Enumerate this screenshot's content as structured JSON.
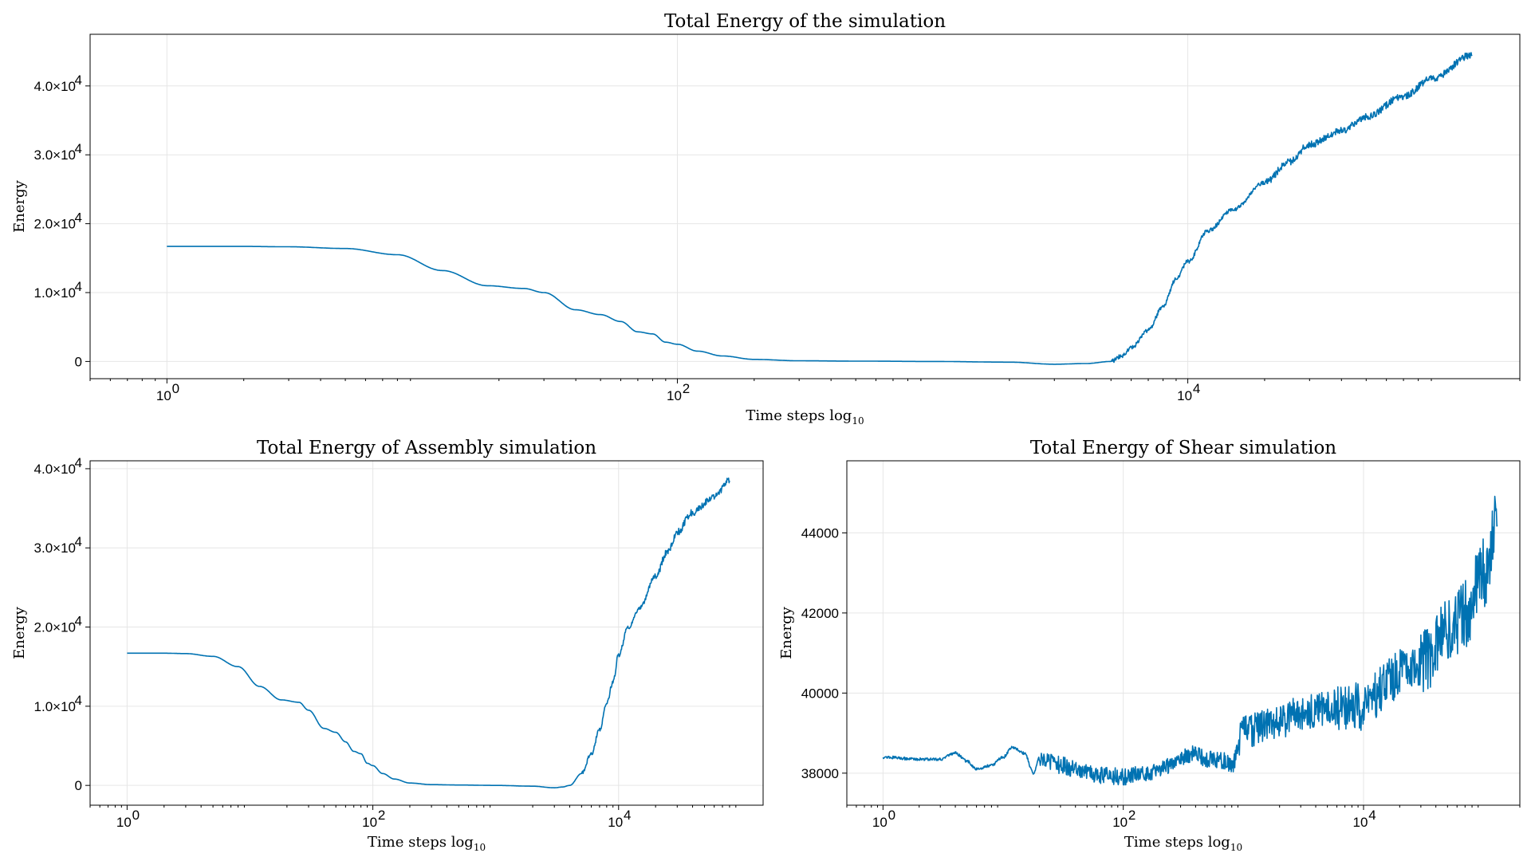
{
  "colors": {
    "line": "#0072b2",
    "grid": "#e6e6e6",
    "frame": "#000000"
  },
  "chart_data": [
    {
      "type": "line",
      "title": "Total Energy of the simulation",
      "xlabel": "Time steps",
      "xlabel_sub": "10",
      "xlabel_log": "log",
      "ylabel": "Energy",
      "xscale": "log10",
      "xlim": [
        0.5,
        200000
      ],
      "ylim": [
        -2500,
        47500
      ],
      "xticks": [
        1,
        100,
        10000
      ],
      "xtick_labels": [
        "10",
        "10",
        "10"
      ],
      "xtick_exps": [
        "0",
        "2",
        "4"
      ],
      "yticks": [
        0,
        10000,
        20000,
        30000,
        40000
      ],
      "ytick_labels": [
        "0",
        "1.0×10",
        "2.0×10",
        "3.0×10",
        "4.0×10"
      ],
      "ytick_exps": [
        "",
        "4",
        "4",
        "4",
        "4"
      ],
      "grid": true,
      "series": [
        {
          "x": [
            1,
            2,
            3,
            5,
            8,
            12,
            18,
            25,
            30,
            40,
            50,
            60,
            70,
            80,
            90,
            100,
            120,
            150,
            200,
            300,
            500,
            1000,
            2000,
            3000,
            4000,
            5000,
            5500,
            6000,
            7000,
            8000,
            9000,
            10000,
            12000,
            15000,
            20000,
            25000,
            30000,
            40000,
            50000,
            70000,
            90000,
            130000
          ],
          "y": [
            16700,
            16700,
            16650,
            16400,
            15500,
            13200,
            11000,
            10600,
            10000,
            7500,
            6800,
            5800,
            4300,
            4000,
            2800,
            2500,
            1500,
            800,
            300,
            100,
            50,
            0,
            -100,
            -400,
            -300,
            0,
            800,
            2000,
            4500,
            8000,
            12000,
            14500,
            19000,
            22000,
            26000,
            29000,
            31500,
            33500,
            35500,
            38500,
            41000,
            44500
          ]
        }
      ]
    },
    {
      "type": "line",
      "title": "Total Energy of Assembly simulation",
      "xlabel": "Time steps",
      "xlabel_sub": "10",
      "xlabel_log": "log",
      "ylabel": "Energy",
      "xscale": "log10",
      "xlim": [
        0.5,
        150000
      ],
      "ylim": [
        -2500,
        41000
      ],
      "xticks": [
        1,
        100,
        10000
      ],
      "xtick_labels": [
        "10",
        "10",
        "10"
      ],
      "xtick_exps": [
        "0",
        "2",
        "4"
      ],
      "yticks": [
        0,
        10000,
        20000,
        30000,
        40000
      ],
      "ytick_labels": [
        "0",
        "1.0×10",
        "2.0×10",
        "3.0×10",
        "4.0×10"
      ],
      "ytick_exps": [
        "",
        "4",
        "4",
        "4",
        "4"
      ],
      "grid": true,
      "series": [
        {
          "x": [
            1,
            2,
            3,
            5,
            8,
            12,
            18,
            25,
            30,
            40,
            50,
            60,
            70,
            80,
            90,
            100,
            120,
            150,
            200,
            300,
            500,
            1000,
            2000,
            3000,
            3500,
            4000,
            5000,
            6000,
            7000,
            8000,
            9000,
            10000,
            12000,
            15000,
            20000,
            25000,
            30000,
            40000,
            60000,
            80000
          ],
          "y": [
            16700,
            16700,
            16650,
            16300,
            15000,
            12500,
            10800,
            10500,
            9500,
            7200,
            6700,
            5500,
            4300,
            4000,
            2800,
            2500,
            1500,
            800,
            300,
            100,
            50,
            0,
            -100,
            -300,
            -200,
            0,
            1500,
            4000,
            7000,
            10500,
            13000,
            16500,
            20000,
            22500,
            26500,
            29500,
            32000,
            34500,
            36500,
            38500
          ]
        }
      ]
    },
    {
      "type": "line",
      "title": "Total Energy of Shear simulation",
      "xlabel": "Time steps",
      "xlabel_sub": "10",
      "xlabel_log": "log",
      "ylabel": "Energy",
      "xscale": "log10",
      "xlim": [
        0.5,
        200000
      ],
      "ylim": [
        37200,
        45800
      ],
      "xticks": [
        1,
        100,
        10000
      ],
      "xtick_labels": [
        "10",
        "10",
        "10"
      ],
      "xtick_exps": [
        "0",
        "2",
        "4"
      ],
      "yticks": [
        38000,
        40000,
        42000,
        44000
      ],
      "ytick_labels": [
        "38000",
        "40000",
        "42000",
        "44000"
      ],
      "ytick_exps": [
        "",
        "",
        "",
        ""
      ],
      "grid": true,
      "series": [
        {
          "x": [
            1,
            2,
            3,
            4,
            5,
            6,
            8,
            10,
            12,
            15,
            18,
            20,
            25,
            30,
            40,
            50,
            70,
            100,
            150,
            200,
            300,
            400,
            500,
            700,
            800,
            1000,
            1500,
            2000,
            3000,
            5000,
            8000,
            10000,
            15000,
            20000,
            30000,
            50000,
            70000,
            100000,
            130000
          ],
          "y": [
            38400,
            38350,
            38350,
            38500,
            38300,
            38100,
            38200,
            38400,
            38650,
            38500,
            38000,
            38400,
            38300,
            38200,
            38100,
            38000,
            37950,
            37900,
            38000,
            38100,
            38400,
            38500,
            38350,
            38300,
            38200,
            39000,
            39200,
            39300,
            39500,
            39600,
            39700,
            39600,
            40200,
            40500,
            40800,
            41500,
            42000,
            43000,
            44200
          ]
        }
      ]
    }
  ]
}
